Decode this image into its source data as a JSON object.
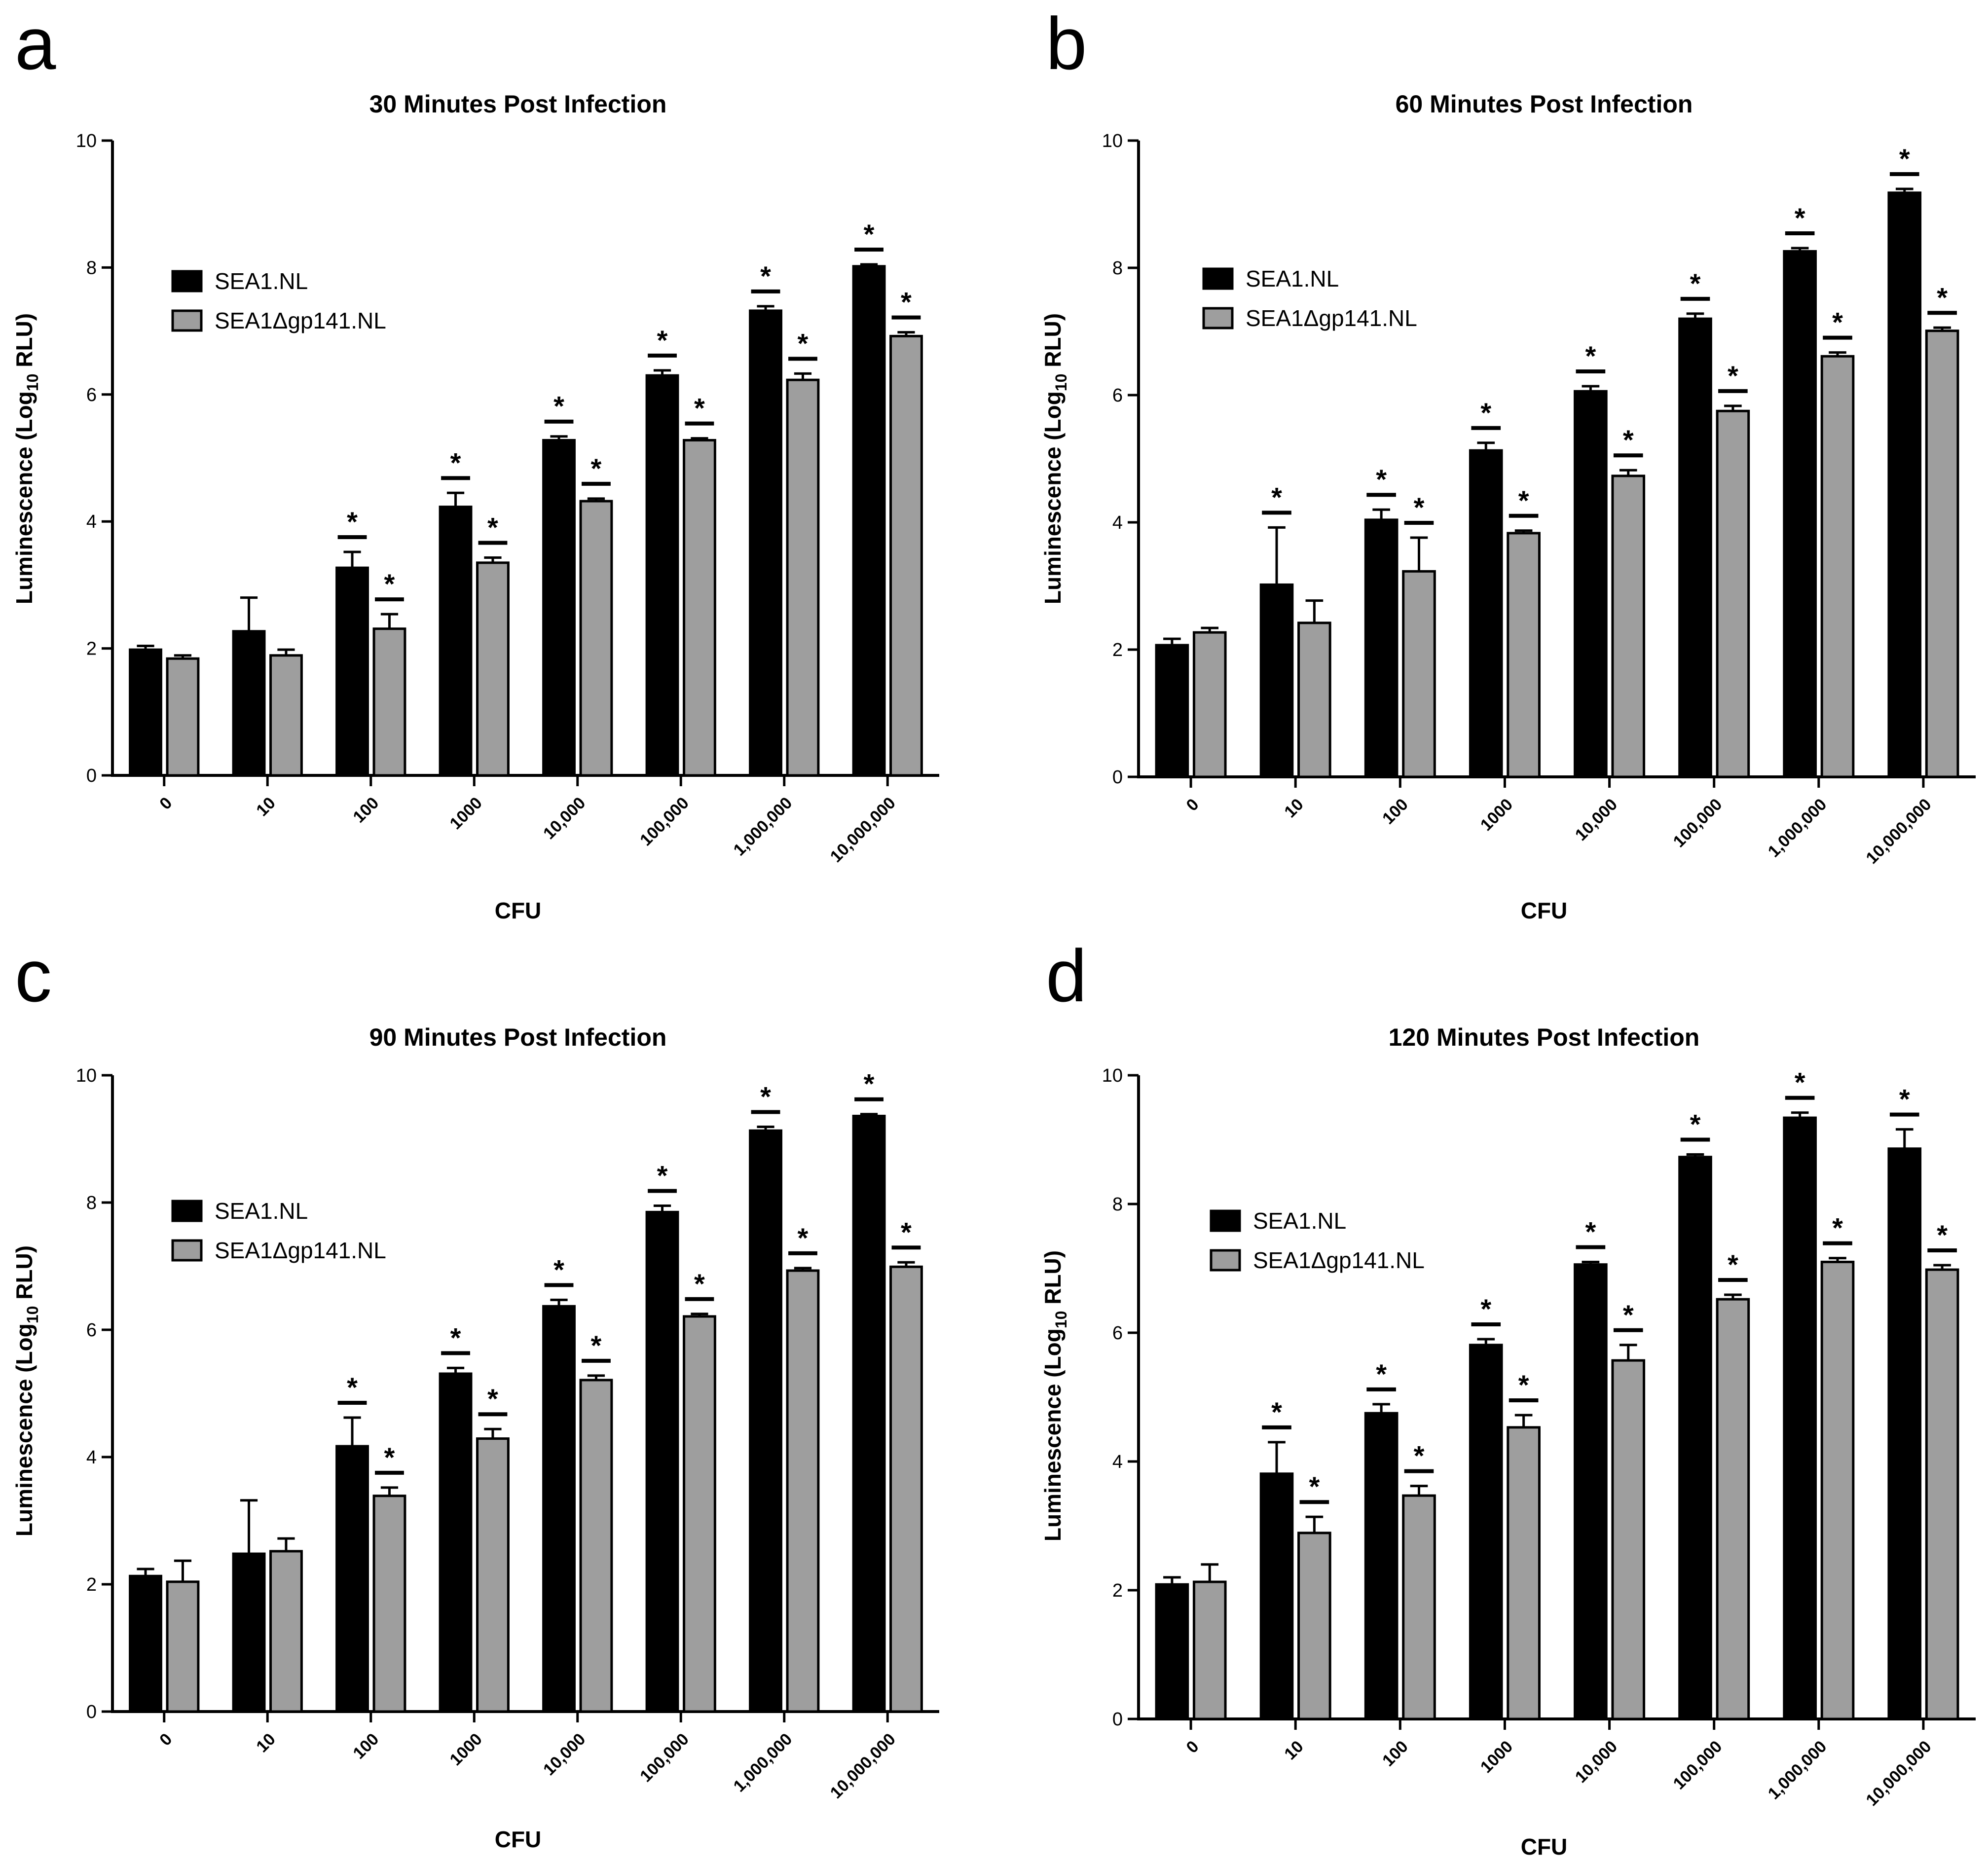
{
  "figure": {
    "series_colors": {
      "SEA1.NL": "#000000",
      "SEA1Δgp141.NL": "#9e9e9e"
    }
  },
  "chart_data": [
    {
      "panel": "a",
      "type": "bar",
      "title": "30 Minutes Post  Infection",
      "xlabel": "CFU",
      "ylabel_main": "Luminescence (Log",
      "ylabel_sub": "10",
      "ylabel_tail": " RLU)",
      "ylim": [
        0,
        10
      ],
      "yticks": [
        "0",
        "2",
        "4",
        "6",
        "8",
        "10"
      ],
      "categories": [
        "0",
        "10",
        "100",
        "1000",
        "10,000",
        "100,000",
        "1,000,000",
        "10,000,000"
      ],
      "legend": [
        "SEA1.NL",
        "SEA1Δgp141.NL"
      ],
      "significance_marker": "*",
      "series": [
        {
          "name": "SEA1.NL",
          "color": "#000000",
          "values": [
            1.98,
            2.27,
            3.27,
            4.23,
            5.28,
            6.3,
            7.32,
            8.02
          ],
          "errors": [
            0.06,
            0.53,
            0.25,
            0.22,
            0.06,
            0.08,
            0.07,
            0.03
          ],
          "significant": [
            false,
            false,
            true,
            true,
            true,
            true,
            true,
            true
          ]
        },
        {
          "name": "SEA1Δgp141.NL",
          "color": "#9e9e9e",
          "values": [
            1.84,
            1.89,
            2.31,
            3.35,
            4.32,
            5.28,
            6.23,
            6.92
          ],
          "errors": [
            0.05,
            0.09,
            0.23,
            0.08,
            0.04,
            0.03,
            0.1,
            0.06
          ],
          "significant": [
            false,
            false,
            true,
            true,
            true,
            true,
            true,
            true
          ]
        }
      ]
    },
    {
      "panel": "b",
      "type": "bar",
      "title": "60 Minutes Post  Infection",
      "xlabel": "CFU",
      "ylabel_main": "Luminescence (Log",
      "ylabel_sub": "10",
      "ylabel_tail": " RLU)",
      "ylim": [
        0,
        10
      ],
      "yticks": [
        "0",
        "2",
        "4",
        "6",
        "8",
        "10"
      ],
      "categories": [
        "0",
        "10",
        "100",
        "1000",
        "10,000",
        "100,000",
        "1,000,000",
        "10,000,000"
      ],
      "legend": [
        "SEA1.NL",
        "SEA1Δgp141.NL"
      ],
      "significance_marker": "*",
      "series": [
        {
          "name": "SEA1.NL",
          "color": "#000000",
          "values": [
            2.07,
            3.02,
            4.04,
            5.13,
            6.06,
            7.2,
            8.26,
            9.18
          ],
          "errors": [
            0.1,
            0.9,
            0.16,
            0.12,
            0.08,
            0.08,
            0.05,
            0.06
          ],
          "significant": [
            false,
            true,
            true,
            true,
            true,
            true,
            true,
            true
          ]
        },
        {
          "name": "SEA1Δgp141.NL",
          "color": "#9e9e9e",
          "values": [
            2.27,
            2.42,
            3.23,
            3.83,
            4.73,
            5.75,
            6.61,
            7.01
          ],
          "errors": [
            0.07,
            0.35,
            0.53,
            0.04,
            0.09,
            0.08,
            0.06,
            0.05
          ],
          "significant": [
            false,
            false,
            true,
            true,
            true,
            true,
            true,
            true
          ]
        }
      ]
    },
    {
      "panel": "c",
      "type": "bar",
      "title": "90 Minutes Post  Infection",
      "xlabel": "CFU",
      "ylabel_main": "Luminescence (Log",
      "ylabel_sub": "10",
      "ylabel_tail": " RLU)",
      "ylim": [
        0,
        10
      ],
      "yticks": [
        "0",
        "2",
        "4",
        "6",
        "8",
        "10"
      ],
      "categories": [
        "0",
        "10",
        "100",
        "1000",
        "10,000",
        "100,000",
        "1,000,000",
        "10,000,000"
      ],
      "legend": [
        "SEA1.NL",
        "SEA1Δgp141.NL"
      ],
      "significance_marker": "*",
      "series": [
        {
          "name": "SEA1.NL",
          "color": "#000000",
          "values": [
            2.13,
            2.48,
            4.17,
            5.31,
            6.37,
            7.85,
            9.13,
            9.36
          ],
          "errors": [
            0.11,
            0.84,
            0.45,
            0.09,
            0.1,
            0.1,
            0.06,
            0.03
          ],
          "significant": [
            false,
            false,
            true,
            true,
            true,
            true,
            true,
            true
          ]
        },
        {
          "name": "SEA1Δgp141.NL",
          "color": "#9e9e9e",
          "values": [
            2.04,
            2.52,
            3.39,
            4.29,
            5.21,
            6.21,
            6.93,
            6.99
          ],
          "errors": [
            0.33,
            0.2,
            0.13,
            0.15,
            0.07,
            0.04,
            0.04,
            0.07
          ],
          "significant": [
            false,
            false,
            true,
            true,
            true,
            true,
            true,
            true
          ]
        }
      ]
    },
    {
      "panel": "d",
      "type": "bar",
      "title": "120 Minutes Post  Infection",
      "xlabel": "CFU",
      "ylabel_main": "Luminescence (Log",
      "ylabel_sub": "10",
      "ylabel_tail": " RLU)",
      "ylim": [
        0,
        10
      ],
      "yticks": [
        "0",
        "2",
        "4",
        "6",
        "8",
        "10"
      ],
      "categories": [
        "0",
        "10",
        "100",
        "1000",
        "10,000",
        "100,000",
        "1,000,000",
        "10,000,000"
      ],
      "legend": [
        "SEA1.NL",
        "SEA1Δgp141.NL"
      ],
      "significance_marker": "*",
      "series": [
        {
          "name": "SEA1.NL",
          "color": "#000000",
          "values": [
            2.09,
            3.81,
            4.75,
            5.81,
            7.06,
            8.73,
            9.34,
            8.86
          ],
          "errors": [
            0.11,
            0.49,
            0.14,
            0.09,
            0.04,
            0.04,
            0.08,
            0.3
          ],
          "significant": [
            false,
            true,
            true,
            true,
            true,
            true,
            true,
            true
          ]
        },
        {
          "name": "SEA1Δgp141.NL",
          "color": "#9e9e9e",
          "values": [
            2.13,
            2.89,
            3.47,
            4.53,
            5.57,
            6.52,
            7.1,
            6.98
          ],
          "errors": [
            0.27,
            0.25,
            0.15,
            0.19,
            0.24,
            0.07,
            0.06,
            0.07
          ],
          "significant": [
            false,
            true,
            true,
            true,
            true,
            true,
            true,
            true
          ]
        }
      ]
    }
  ]
}
